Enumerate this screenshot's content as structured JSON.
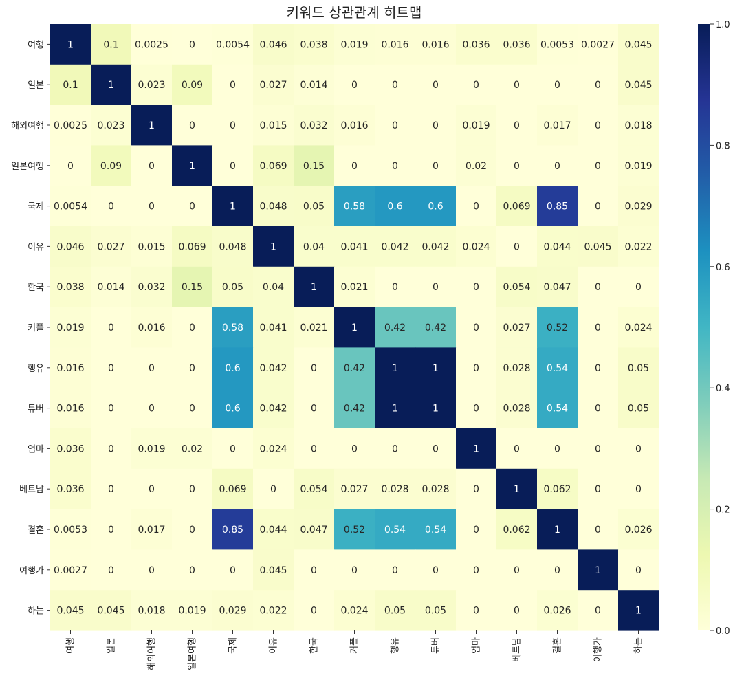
{
  "chart_data": {
    "type": "heatmap",
    "title": "키워드 상관관계 히트맵",
    "labels": [
      "여행",
      "일본",
      "해외여행",
      "일본여행",
      "국제",
      "이유",
      "한국",
      "커플",
      "행유",
      "튜버",
      "엄마",
      "베트남",
      "결혼",
      "여행가",
      "하는"
    ],
    "values": [
      [
        1,
        0.1,
        0.0025,
        0,
        0.0054,
        0.046,
        0.038,
        0.019,
        0.016,
        0.016,
        0.036,
        0.036,
        0.0053,
        0.0027,
        0.045
      ],
      [
        0.1,
        1,
        0.023,
        0.09,
        0,
        0.027,
        0.014,
        0,
        0,
        0,
        0,
        0,
        0,
        0,
        0.045
      ],
      [
        0.0025,
        0.023,
        1,
        0,
        0,
        0.015,
        0.032,
        0.016,
        0,
        0,
        0.019,
        0,
        0.017,
        0,
        0.018
      ],
      [
        0,
        0.09,
        0,
        1,
        0,
        0.069,
        0.15,
        0,
        0,
        0,
        0.02,
        0,
        0,
        0,
        0.019
      ],
      [
        0.0054,
        0,
        0,
        0,
        1,
        0.048,
        0.05,
        0.58,
        0.6,
        0.6,
        0,
        0.069,
        0.85,
        0,
        0.029
      ],
      [
        0.046,
        0.027,
        0.015,
        0.069,
        0.048,
        1,
        0.04,
        0.041,
        0.042,
        0.042,
        0.024,
        0,
        0.044,
        0.045,
        0.022
      ],
      [
        0.038,
        0.014,
        0.032,
        0.15,
        0.05,
        0.04,
        1,
        0.021,
        0,
        0,
        0,
        0.054,
        0.047,
        0,
        0
      ],
      [
        0.019,
        0,
        0.016,
        0,
        0.58,
        0.041,
        0.021,
        1,
        0.42,
        0.42,
        0,
        0.027,
        0.52,
        0,
        0.024
      ],
      [
        0.016,
        0,
        0,
        0,
        0.6,
        0.042,
        0,
        0.42,
        1,
        1,
        0,
        0.028,
        0.54,
        0,
        0.05
      ],
      [
        0.016,
        0,
        0,
        0,
        0.6,
        0.042,
        0,
        0.42,
        1,
        1,
        0,
        0.028,
        0.54,
        0,
        0.05
      ],
      [
        0.036,
        0,
        0.019,
        0.02,
        0,
        0.024,
        0,
        0,
        0,
        0,
        1,
        0,
        0,
        0,
        0
      ],
      [
        0.036,
        0,
        0,
        0,
        0.069,
        0,
        0.054,
        0.027,
        0.028,
        0.028,
        0,
        1,
        0.062,
        0,
        0
      ],
      [
        0.0053,
        0,
        0.017,
        0,
        0.85,
        0.044,
        0.047,
        0.52,
        0.54,
        0.54,
        0,
        0.062,
        1,
        0,
        0.026
      ],
      [
        0.0027,
        0,
        0,
        0,
        0,
        0.045,
        0,
        0,
        0,
        0,
        0,
        0,
        0,
        1,
        0
      ],
      [
        0.045,
        0.045,
        0.018,
        0.019,
        0.029,
        0.022,
        0,
        0.024,
        0.05,
        0.05,
        0,
        0,
        0.026,
        0,
        1
      ]
    ],
    "colormap": "YlGnBu",
    "vmin": 0,
    "vmax": 1,
    "colorbar_ticks": [
      "0.0",
      "0.2",
      "0.4",
      "0.6",
      "0.8",
      "1.0"
    ],
    "annotated": true,
    "grid": false
  }
}
